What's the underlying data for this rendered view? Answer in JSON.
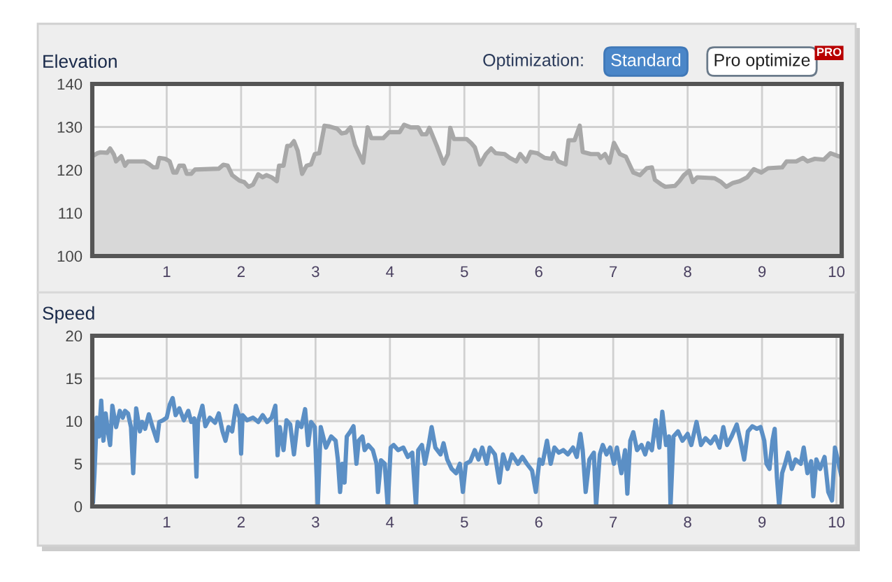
{
  "chart_data": [
    {
      "type": "area",
      "title": "Elevation",
      "annotations": [
        "Optimization:",
        "Standard",
        "Pro optimize",
        "PRO"
      ],
      "xlim": [
        0,
        10.07
      ],
      "xticks": [
        1,
        2,
        3,
        4,
        5,
        6,
        7,
        8,
        9,
        10
      ],
      "ylim": [
        100,
        140
      ],
      "yticks": [
        100,
        110,
        120,
        130,
        140
      ],
      "grid": true,
      "legend": false,
      "series": [
        {
          "color": "#a8a8a8",
          "x": [
            0.01,
            0.07,
            0.11,
            0.2,
            0.24,
            0.29,
            0.32,
            0.39,
            0.44,
            0.48,
            0.7,
            0.77,
            0.82,
            0.87,
            0.9,
            0.98,
            1.04,
            1.09,
            1.13,
            1.17,
            1.23,
            1.27,
            1.33,
            1.38,
            1.7,
            1.76,
            1.82,
            1.88,
            1.98,
            2.04,
            2.1,
            2.16,
            2.23,
            2.29,
            2.34,
            2.41,
            2.48,
            2.51,
            2.57,
            2.62,
            2.66,
            2.71,
            2.76,
            2.82,
            2.88,
            2.94,
            2.99,
            3.05,
            3.12,
            3.19,
            3.29,
            3.35,
            3.41,
            3.47,
            3.53,
            3.58,
            3.64,
            3.7,
            3.75,
            3.91,
            3.99,
            4.13,
            4.19,
            4.28,
            4.38,
            4.43,
            4.49,
            4.53,
            4.63,
            4.72,
            4.78,
            4.81,
            4.86,
            5.03,
            5.09,
            5.14,
            5.21,
            5.29,
            5.36,
            5.42,
            5.54,
            5.61,
            5.7,
            5.75,
            5.83,
            5.89,
            5.98,
            6.08,
            6.17,
            6.2,
            6.26,
            6.36,
            6.4,
            6.48,
            6.55,
            6.59,
            6.7,
            6.8,
            6.83,
            6.89,
            6.95,
            7.01,
            7.09,
            7.17,
            7.27,
            7.36,
            7.45,
            7.52,
            7.56,
            7.64,
            7.7,
            7.83,
            7.89,
            7.95,
            8.02,
            8.07,
            8.13,
            8.36,
            8.45,
            8.52,
            8.61,
            8.7,
            8.8,
            8.89,
            8.99,
            9.08,
            9.27,
            9.33,
            9.46,
            9.55,
            9.61,
            9.71,
            9.83,
            9.92,
            10.01,
            10.05
          ],
          "values": [
            123.3,
            123.9,
            124.1,
            124,
            125,
            123.6,
            122,
            123.2,
            121,
            122,
            122,
            121.3,
            120.6,
            120.6,
            122.8,
            122.6,
            122,
            119.4,
            119.4,
            121,
            121,
            119.1,
            119.1,
            120.1,
            120.3,
            121.2,
            121,
            118.8,
            117.5,
            117.2,
            116.1,
            116.6,
            119,
            118.3,
            118.8,
            118.3,
            117.4,
            121,
            121,
            125.6,
            125.6,
            126.7,
            124.5,
            119.1,
            121,
            121.3,
            123.7,
            123.9,
            130.3,
            130.1,
            129.6,
            128.5,
            128.7,
            129.9,
            125.8,
            123.9,
            121.7,
            129.9,
            127.4,
            127.4,
            128.8,
            128.8,
            130.5,
            129.9,
            129.9,
            128.3,
            128.3,
            129.8,
            125.6,
            121.5,
            123.7,
            129.8,
            127.2,
            127.2,
            126.3,
            125.3,
            121.3,
            123.7,
            125,
            123.9,
            123.7,
            122.8,
            122,
            123.7,
            122,
            124.2,
            123.9,
            122.8,
            122.6,
            123.9,
            122,
            121.3,
            126.9,
            126.9,
            130.3,
            124.2,
            123.7,
            123.7,
            122.8,
            123.7,
            121.7,
            126.3,
            123.7,
            123.1,
            119.4,
            118.8,
            120.4,
            120.6,
            117.7,
            116.7,
            116.1,
            116.3,
            117.4,
            118.8,
            119.8,
            117.2,
            118.3,
            118.1,
            117.2,
            116.1,
            117,
            117.4,
            118.3,
            120.2,
            119.4,
            120.4,
            120.6,
            122,
            122,
            122.8,
            122,
            122.6,
            122.4,
            123.9,
            123.3,
            123.1
          ]
        }
      ]
    },
    {
      "type": "line",
      "title": "Speed",
      "xlim": [
        0,
        10.07
      ],
      "xticks": [
        1,
        2,
        3,
        4,
        5,
        6,
        7,
        8,
        9,
        10
      ],
      "ylim": [
        0,
        20
      ],
      "yticks": [
        0,
        5,
        10,
        15,
        20
      ],
      "grid": true,
      "legend": false,
      "marker": "none",
      "line_style": "solid",
      "series": [
        {
          "color": "#5b8fc5",
          "x": [
            0.01,
            0.03,
            0.06,
            0.09,
            0.12,
            0.15,
            0.18,
            0.21,
            0.24,
            0.27,
            0.32,
            0.37,
            0.41,
            0.44,
            0.48,
            0.52,
            0.55,
            0.59,
            0.64,
            0.67,
            0.71,
            0.76,
            0.81,
            0.87,
            0.9,
            0.95,
            1.0,
            1.04,
            1.08,
            1.12,
            1.17,
            1.23,
            1.29,
            1.33,
            1.37,
            1.4,
            1.42,
            1.48,
            1.52,
            1.58,
            1.65,
            1.7,
            1.75,
            1.79,
            1.83,
            1.88,
            1.93,
            1.98,
            2.0,
            2.02,
            2.08,
            2.16,
            2.23,
            2.29,
            2.35,
            2.41,
            2.46,
            2.49,
            2.52,
            2.57,
            2.61,
            2.66,
            2.71,
            2.76,
            2.81,
            2.86,
            2.9,
            2.94,
            2.99,
            3.03,
            3.07,
            3.14,
            3.21,
            3.27,
            3.3,
            3.33,
            3.36,
            3.39,
            3.42,
            3.47,
            3.51,
            3.55,
            3.58,
            3.63,
            3.66,
            3.71,
            3.77,
            3.82,
            3.84,
            3.88,
            3.93,
            3.97,
            4.01,
            4.05,
            4.11,
            4.18,
            4.24,
            4.3,
            4.35,
            4.38,
            4.43,
            4.47,
            4.52,
            4.56,
            4.61,
            4.68,
            4.72,
            4.77,
            4.83,
            4.89,
            4.94,
            4.98,
            5.02,
            5.08,
            5.14,
            5.19,
            5.24,
            5.3,
            5.34,
            5.41,
            5.47,
            5.52,
            5.58,
            5.64,
            5.72,
            5.78,
            5.84,
            5.91,
            5.96,
            6.01,
            6.05,
            6.11,
            6.16,
            6.21,
            6.27,
            6.33,
            6.39,
            6.46,
            6.51,
            6.56,
            6.59,
            6.63,
            6.68,
            6.74,
            6.77,
            6.82,
            6.86,
            6.91,
            6.96,
            7.01,
            7.05,
            7.11,
            7.16,
            7.19,
            7.23,
            7.27,
            7.32,
            7.38,
            7.43,
            7.47,
            7.52,
            7.57,
            7.62,
            7.66,
            7.71,
            7.75,
            7.77,
            7.81,
            7.87,
            7.93,
            8.0,
            8.05,
            8.12,
            8.18,
            8.24,
            8.31,
            8.37,
            8.43,
            8.48,
            8.53,
            8.59,
            8.66,
            8.71,
            8.76,
            8.81,
            8.87,
            8.93,
            8.98,
            9.03,
            9.06,
            9.1,
            9.14,
            9.17,
            9.2,
            9.23,
            9.27,
            9.31,
            9.35,
            9.4,
            9.45,
            9.52,
            9.56,
            9.61,
            9.66,
            9.69,
            9.73,
            9.78,
            9.84,
            9.89,
            9.94,
            9.98,
            10.03,
            10.07
          ],
          "values": [
            0.6,
            3.9,
            10.4,
            8.2,
            12.4,
            7.7,
            10.9,
            8.8,
            7.2,
            11.8,
            9.3,
            11.2,
            10.4,
            11.2,
            10.9,
            9.3,
            3.9,
            11.5,
            8.8,
            9.9,
            9.1,
            10.8,
            9.3,
            7.7,
            9.9,
            10.1,
            10.4,
            11.9,
            12.7,
            10.7,
            11.5,
            10.1,
            11.2,
            9.9,
            10.3,
            3.5,
            9.9,
            11.8,
            9.4,
            10.4,
            9.8,
            10.9,
            8.8,
            7.7,
            9.3,
            8.8,
            11.8,
            10.4,
            6.2,
            10.7,
            10.1,
            10.4,
            9.9,
            10.7,
            9.9,
            10.4,
            11.8,
            6,
            9.3,
            6.6,
            10.1,
            9.6,
            6.1,
            9.9,
            9.3,
            11.4,
            7.2,
            9.9,
            9.3,
            0,
            9.3,
            6.9,
            8.2,
            7.7,
            5.5,
            1.7,
            5,
            2.8,
            8.2,
            8.8,
            9.4,
            5,
            7.7,
            8.2,
            6.6,
            7.2,
            6.6,
            5,
            1.7,
            5.4,
            5,
            0,
            6.9,
            7.2,
            6.6,
            6.9,
            5.8,
            6.3,
            0,
            6.6,
            7.2,
            5,
            7.2,
            9.3,
            6.9,
            6.1,
            7.4,
            5.5,
            4.4,
            3.9,
            5,
            1.7,
            5,
            5.3,
            6.6,
            5.5,
            6.9,
            5,
            6.9,
            6.1,
            2.8,
            6.1,
            4.4,
            6.1,
            5,
            5.8,
            5,
            4.2,
            1.7,
            5.5,
            5,
            7.7,
            5,
            6.9,
            6.3,
            6.6,
            6.1,
            6.9,
            5.8,
            8.5,
            6.6,
            1.7,
            5.5,
            6.3,
            0,
            6.1,
            7.2,
            6.1,
            6.9,
            5,
            6.9,
            3.9,
            6.6,
            1.5,
            7.7,
            8.7,
            6.6,
            7.2,
            6.1,
            7.4,
            6.6,
            10.1,
            6.9,
            11.1,
            7.2,
            8.2,
            0,
            8.2,
            8.8,
            7.7,
            8.5,
            7.2,
            9.9,
            7.2,
            8,
            7.4,
            8.2,
            6.9,
            9.3,
            7.2,
            8.2,
            9.6,
            7.7,
            5.5,
            8.8,
            9.4,
            9.1,
            9.3,
            7.7,
            5,
            4.4,
            7.7,
            9.1,
            3.4,
            0,
            3.9,
            5,
            6.3,
            4.4,
            5.5,
            5,
            6.9,
            3.9,
            5.3,
            1.2,
            5.5,
            4.4,
            5.8,
            1.7,
            0.7,
            6.9,
            5,
            3.4
          ]
        }
      ]
    }
  ]
}
